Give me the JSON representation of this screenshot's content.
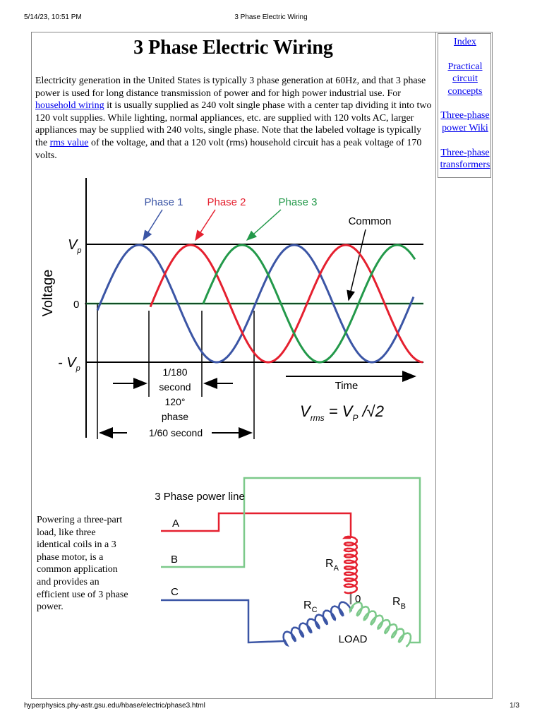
{
  "print_header": {
    "datetime": "5/14/23, 10:51 PM",
    "title": "3 Phase Electric Wiring"
  },
  "article": {
    "title": "3 Phase Electric Wiring",
    "paragraph": [
      {
        "text": "Electricity generation in the United States is typically 3 phase generation at 60Hz, and that 3 phase power is used for long distance transmission of power and for high power industrial use. For "
      },
      {
        "text": "household wiring",
        "link": true
      },
      {
        "text": " it is usually supplied as 240 volt single phase with a center tap dividing it into two 120 volt supplies. While lighting, normal appliances, etc. are supplied with 120 volts AC, larger appliances may be supplied with 240 volts, single phase. Note that the labeled voltage is typically the "
      },
      {
        "text": "rms value",
        "link": true
      },
      {
        "text": " of the voltage, and that a 120 volt (rms) household circuit has a peak voltage of 170 volts."
      }
    ]
  },
  "sidebar": {
    "links": [
      "Index",
      "Practical circuit concepts",
      "Three-phase power Wiki",
      "Three-phase transformers"
    ]
  },
  "waveform_figure": {
    "phase_labels": [
      "Phase 1",
      "Phase 2",
      "Phase 3"
    ],
    "common_label": "Common",
    "axis_label": "Voltage",
    "peak_label": {
      "base": "V",
      "sub": "p"
    },
    "zero_label": "0",
    "negative_peak_label": {
      "base": "- V",
      "sub": "p"
    },
    "shift_label": [
      "1/180",
      "second",
      "120°",
      "phase"
    ],
    "period_label": "1/60 second",
    "time_label": "Time",
    "formula": [
      {
        "text": "V"
      },
      {
        "sub": "rms"
      },
      {
        "text": " = V"
      },
      {
        "sub": "P"
      },
      {
        "text": " /√2"
      }
    ]
  },
  "load_section": {
    "text": "Powering a three-part load, like three identical coils in a 3 phase motor, is a common application and provides an efficient use of 3 phase power.",
    "figure": {
      "title": "3 Phase power line",
      "lines": [
        "A",
        "B",
        "C"
      ],
      "resistors": [
        {
          "base": "R",
          "sub": "A"
        },
        {
          "base": "R",
          "sub": "B"
        },
        {
          "base": "R",
          "sub": "C"
        }
      ],
      "node_label": "0",
      "load_label": "LOAD"
    }
  },
  "print_footer": {
    "url": "hyperphysics.phy-astr.gsu.edu/hbase/electric/phase3.html",
    "page": "1/3"
  }
}
